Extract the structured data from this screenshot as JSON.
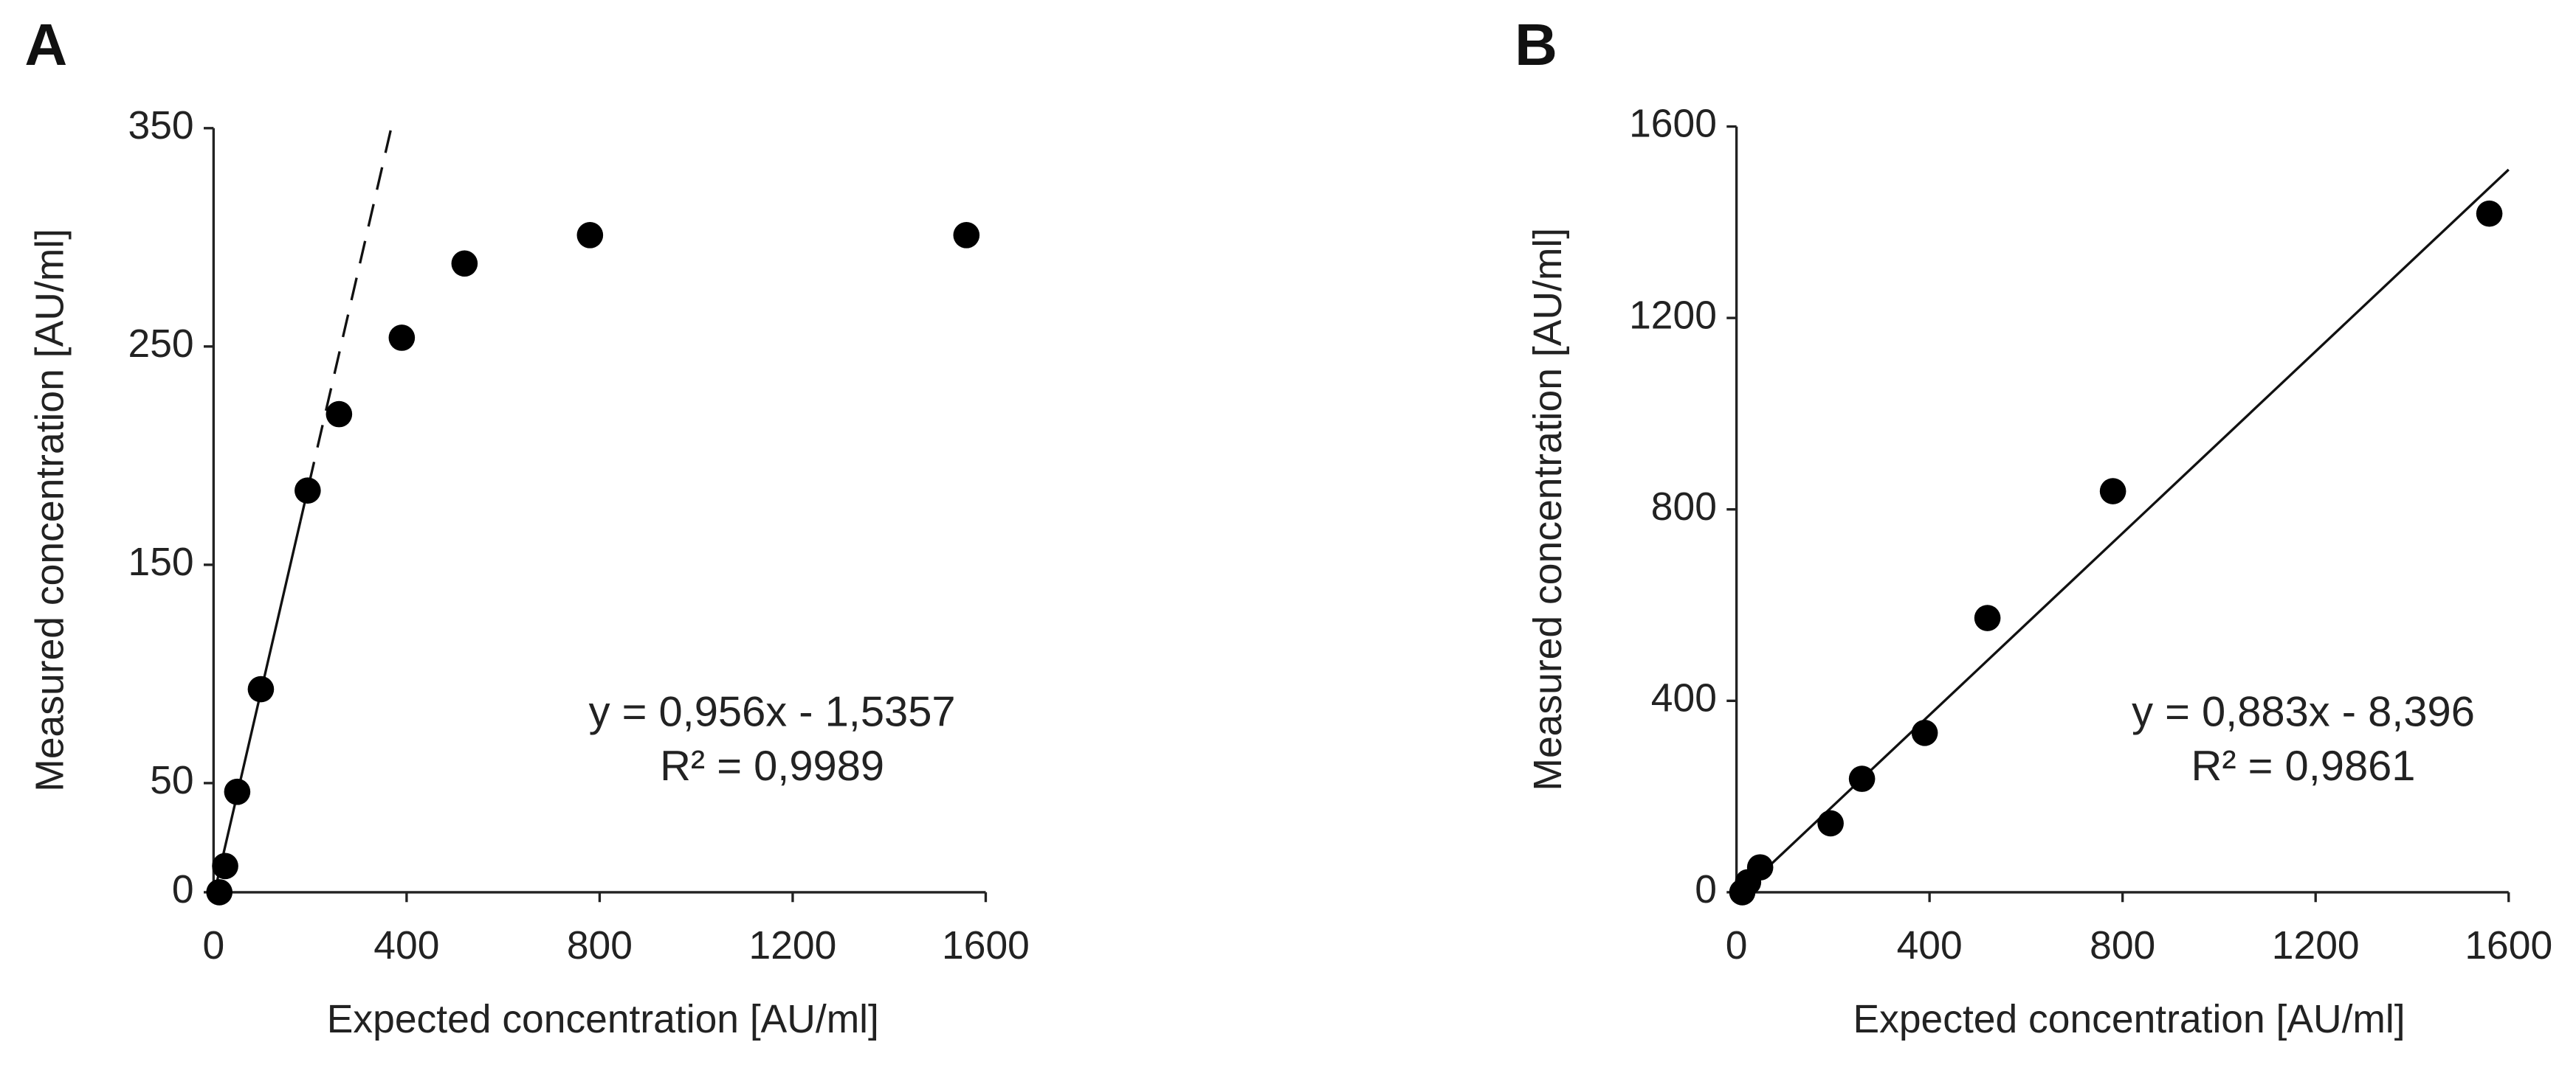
{
  "chart_data": [
    {
      "type": "scatter",
      "panel_label": "A",
      "x_label": "Expected concentration [AU/ml]",
      "y_label": "Measured concentration [AU/ml]",
      "x": [
        12,
        24,
        49,
        98,
        195,
        260,
        390,
        520,
        780,
        1560
      ],
      "values": [
        0,
        12,
        46,
        93,
        184,
        219,
        254,
        288,
        301,
        301
      ],
      "color": "#000000",
      "xlim": [
        0,
        1600
      ],
      "xticks": [
        0,
        400,
        800,
        1200,
        1600
      ],
      "ylim": [
        0,
        350
      ],
      "yticks": [
        0,
        50,
        150,
        250,
        350
      ],
      "fit_line": {
        "x": [
          2,
          180,
          368
        ],
        "y": [
          0,
          170,
          350
        ],
        "style": [
          "solid",
          "dashed"
        ]
      },
      "annotations": [
        "y = 0,956x - 1,5357",
        "R² = 0,9989"
      ]
    },
    {
      "type": "scatter",
      "panel_label": "B",
      "x_label": "Expected concentration [AU/ml]",
      "y_label": "Measured concentration [AU/ml]",
      "x": [
        12,
        24,
        49,
        195,
        260,
        390,
        520,
        780,
        1560
      ],
      "values": [
        0,
        21,
        52,
        144,
        237,
        333,
        573,
        838,
        1418
      ],
      "color": "#000000",
      "xlim": [
        0,
        1600
      ],
      "xticks": [
        0,
        400,
        800,
        1200,
        1600
      ],
      "ylim": [
        0,
        1600
      ],
      "yticks": [
        0,
        400,
        800,
        1200,
        1600
      ],
      "fit_line": {
        "x": [
          10,
          1600
        ],
        "y": [
          0,
          1510
        ],
        "style": [
          "solid"
        ]
      },
      "annotations": [
        "y = 0,883x - 8,396",
        "R² = 0,9861"
      ]
    }
  ]
}
